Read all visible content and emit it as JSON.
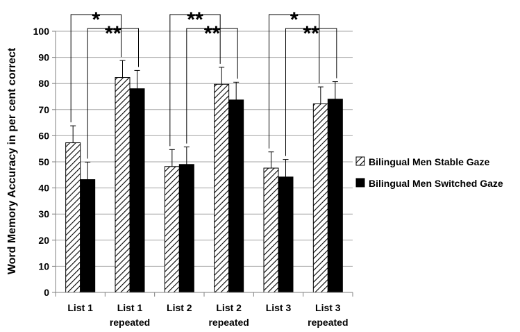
{
  "chart_data": {
    "type": "bar",
    "ylabel": "Word Memory Accuracy in per cent correct",
    "ylim": [
      0,
      100
    ],
    "yticks": [
      0,
      10,
      20,
      30,
      40,
      50,
      60,
      70,
      80,
      90,
      100
    ],
    "grid": true,
    "legend_position": "right",
    "categories": [
      [
        "List 1"
      ],
      [
        "List 1",
        "repeated"
      ],
      [
        "List 2"
      ],
      [
        "List 2",
        "repeated"
      ],
      [
        "List 3"
      ],
      [
        "List 3",
        "repeated"
      ]
    ],
    "series": [
      {
        "name": "Bilingual Men Stable Gaze",
        "pattern": "hatched",
        "color": "#000000",
        "values": [
          57.3,
          82.3,
          48.2,
          79.7,
          47.6,
          72.2
        ],
        "error": [
          6.5,
          6.5,
          6.5,
          6.5,
          6.2,
          6.5
        ]
      },
      {
        "name": "Bilingual Men Switched Gaze",
        "pattern": "solid",
        "color": "#000000",
        "values": [
          43.2,
          78.0,
          49.0,
          73.7,
          44.2,
          74.0
        ],
        "error": [
          6.7,
          7.0,
          6.7,
          6.8,
          6.7,
          6.7
        ]
      }
    ],
    "significance": [
      {
        "from": [
          0,
          0
        ],
        "to": [
          1,
          0
        ],
        "label": "*"
      },
      {
        "from": [
          0,
          1
        ],
        "to": [
          1,
          1
        ],
        "label": "**"
      },
      {
        "from": [
          2,
          0
        ],
        "to": [
          3,
          0
        ],
        "label": "**"
      },
      {
        "from": [
          2,
          1
        ],
        "to": [
          3,
          1
        ],
        "label": "**"
      },
      {
        "from": [
          4,
          0
        ],
        "to": [
          5,
          0
        ],
        "label": "*"
      },
      {
        "from": [
          4,
          1
        ],
        "to": [
          5,
          1
        ],
        "label": "**"
      }
    ]
  }
}
